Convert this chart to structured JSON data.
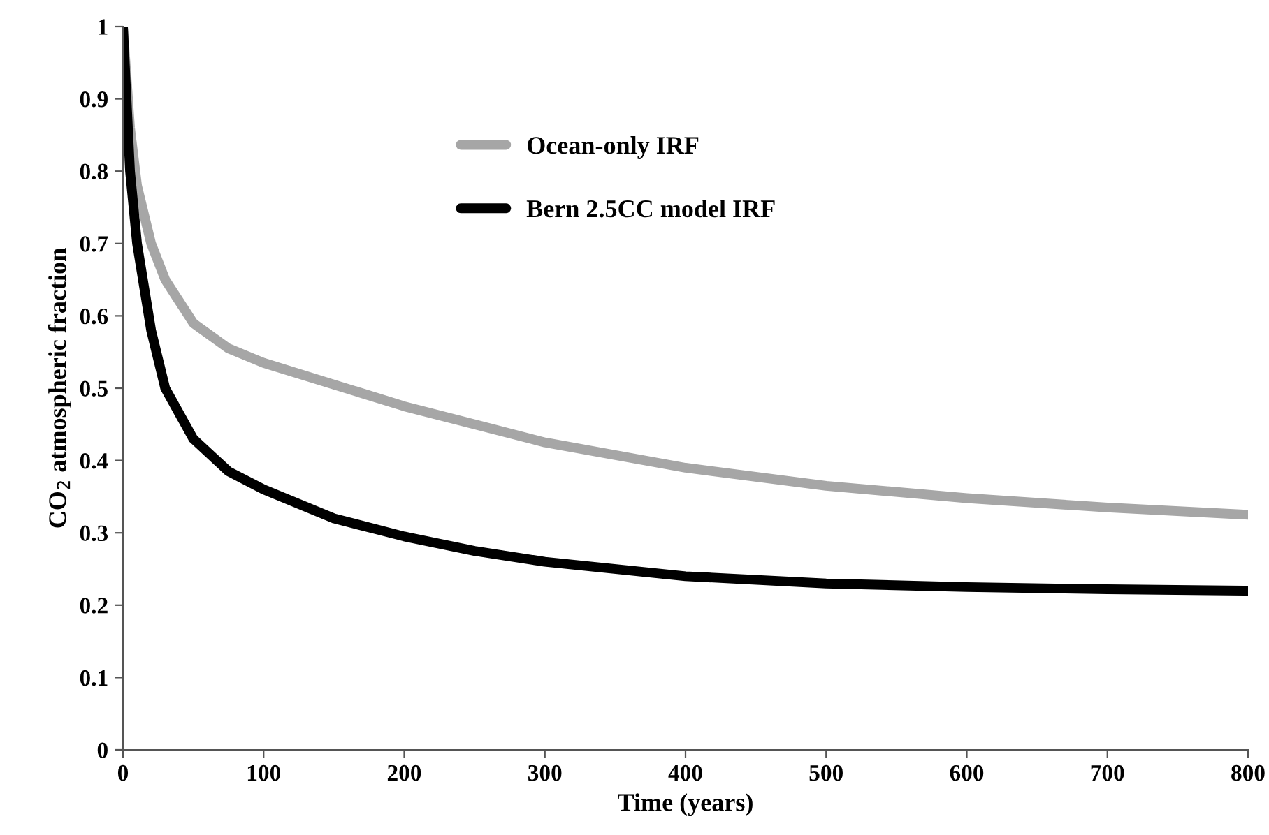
{
  "chart_data": {
    "type": "line",
    "xlabel": "Time (years)",
    "ylabel": "CO$_{2}$ atmospheric fraction",
    "xlim": [
      0,
      800
    ],
    "xticks": [
      0,
      100,
      200,
      300,
      400,
      500,
      600,
      700,
      800
    ],
    "ylim": [
      0,
      1
    ],
    "yticks": [
      0,
      0.1,
      0.2,
      0.3,
      0.4,
      0.5,
      0.6,
      0.7,
      0.8,
      0.9,
      1
    ],
    "grid": false,
    "legend": "top",
    "line_style": "solid",
    "marker": "none",
    "series": [
      {
        "name": "Ocean-only IRF",
        "color": "#a6a6a6",
        "x": [
          0,
          5,
          10,
          20,
          30,
          50,
          75,
          100,
          150,
          200,
          250,
          300,
          400,
          500,
          600,
          700,
          800
        ],
        "values": [
          1,
          0.86,
          0.78,
          0.7,
          0.65,
          0.59,
          0.555,
          0.535,
          0.505,
          0.475,
          0.45,
          0.425,
          0.39,
          0.365,
          0.348,
          0.335,
          0.325
        ]
      },
      {
        "name": "Bern 2.5CC model IRF",
        "color": "#000000",
        "x": [
          0,
          5,
          10,
          20,
          30,
          50,
          75,
          100,
          150,
          200,
          250,
          300,
          400,
          500,
          600,
          700,
          800
        ],
        "values": [
          1,
          0.8,
          0.7,
          0.58,
          0.5,
          0.43,
          0.385,
          0.36,
          0.32,
          0.295,
          0.275,
          0.26,
          0.24,
          0.23,
          0.225,
          0.222,
          0.22
        ]
      }
    ]
  }
}
